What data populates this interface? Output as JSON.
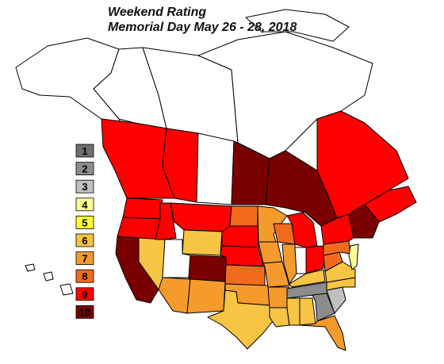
{
  "title_line1": "Weekend Rating",
  "title_line2": "Memorial Day May 26 - 28, 2018",
  "legend": [
    {
      "label": "1",
      "color": "#6f6f6f"
    },
    {
      "label": "2",
      "color": "#8c8c8c"
    },
    {
      "label": "3",
      "color": "#c0c0c0"
    },
    {
      "label": "4",
      "color": "#ffff99"
    },
    {
      "label": "5",
      "color": "#ffff33"
    },
    {
      "label": "6",
      "color": "#f7c443"
    },
    {
      "label": "7",
      "color": "#f59b2c"
    },
    {
      "label": "8",
      "color": "#f26b1d"
    },
    {
      "label": "9",
      "color": "#ff0000"
    },
    {
      "label": "10",
      "color": "#7a0000"
    }
  ],
  "regions": [
    {
      "name": "Alaska",
      "rating": null
    },
    {
      "name": "Yukon",
      "rating": null
    },
    {
      "name": "Northwest Territories",
      "rating": null
    },
    {
      "name": "Nunavut",
      "rating": null
    },
    {
      "name": "British Columbia",
      "rating": 9
    },
    {
      "name": "Alberta",
      "rating": 9
    },
    {
      "name": "Saskatchewan",
      "rating": null
    },
    {
      "name": "Manitoba",
      "rating": 10
    },
    {
      "name": "Ontario",
      "rating": 10
    },
    {
      "name": "Quebec",
      "rating": 9
    },
    {
      "name": "Atlantic Canada",
      "rating": 9
    },
    {
      "name": "Washington",
      "rating": 9
    },
    {
      "name": "Oregon",
      "rating": 9
    },
    {
      "name": "California",
      "rating": 10
    },
    {
      "name": "Nevada",
      "rating": 6
    },
    {
      "name": "Idaho",
      "rating": 9
    },
    {
      "name": "Montana",
      "rating": 9
    },
    {
      "name": "Wyoming",
      "rating": 6
    },
    {
      "name": "Utah",
      "rating": null
    },
    {
      "name": "Arizona",
      "rating": 7
    },
    {
      "name": "Colorado",
      "rating": 10
    },
    {
      "name": "New Mexico",
      "rating": 7
    },
    {
      "name": "North Dakota",
      "rating": 8
    },
    {
      "name": "South Dakota",
      "rating": 9
    },
    {
      "name": "Nebraska",
      "rating": 9
    },
    {
      "name": "Kansas",
      "rating": 8
    },
    {
      "name": "Oklahoma",
      "rating": 7
    },
    {
      "name": "Texas",
      "rating": 6
    },
    {
      "name": "Minnesota",
      "rating": 7
    },
    {
      "name": "Iowa",
      "rating": 7
    },
    {
      "name": "Missouri",
      "rating": 7
    },
    {
      "name": "Arkansas",
      "rating": 7
    },
    {
      "name": "Louisiana",
      "rating": 6
    },
    {
      "name": "Wisconsin",
      "rating": 8
    },
    {
      "name": "Michigan",
      "rating": 9
    },
    {
      "name": "Illinois",
      "rating": 7
    },
    {
      "name": "Indiana",
      "rating": null
    },
    {
      "name": "Ohio",
      "rating": 9
    },
    {
      "name": "Kentucky",
      "rating": 6
    },
    {
      "name": "Tennessee",
      "rating": 2
    },
    {
      "name": "Mississippi",
      "rating": 6
    },
    {
      "name": "Alabama",
      "rating": 6
    },
    {
      "name": "Georgia",
      "rating": 2
    },
    {
      "name": "Florida",
      "rating": 7
    },
    {
      "name": "South Carolina",
      "rating": 3
    },
    {
      "name": "North Carolina",
      "rating": 6
    },
    {
      "name": "Virginia",
      "rating": 6
    },
    {
      "name": "West Virginia",
      "rating": 8
    },
    {
      "name": "Pennsylvania",
      "rating": 8
    },
    {
      "name": "New York",
      "rating": 9
    },
    {
      "name": "New England",
      "rating": 10
    },
    {
      "name": "Mid-Atlantic Coast",
      "rating": 4
    },
    {
      "name": "Hawaii",
      "rating": null
    }
  ]
}
